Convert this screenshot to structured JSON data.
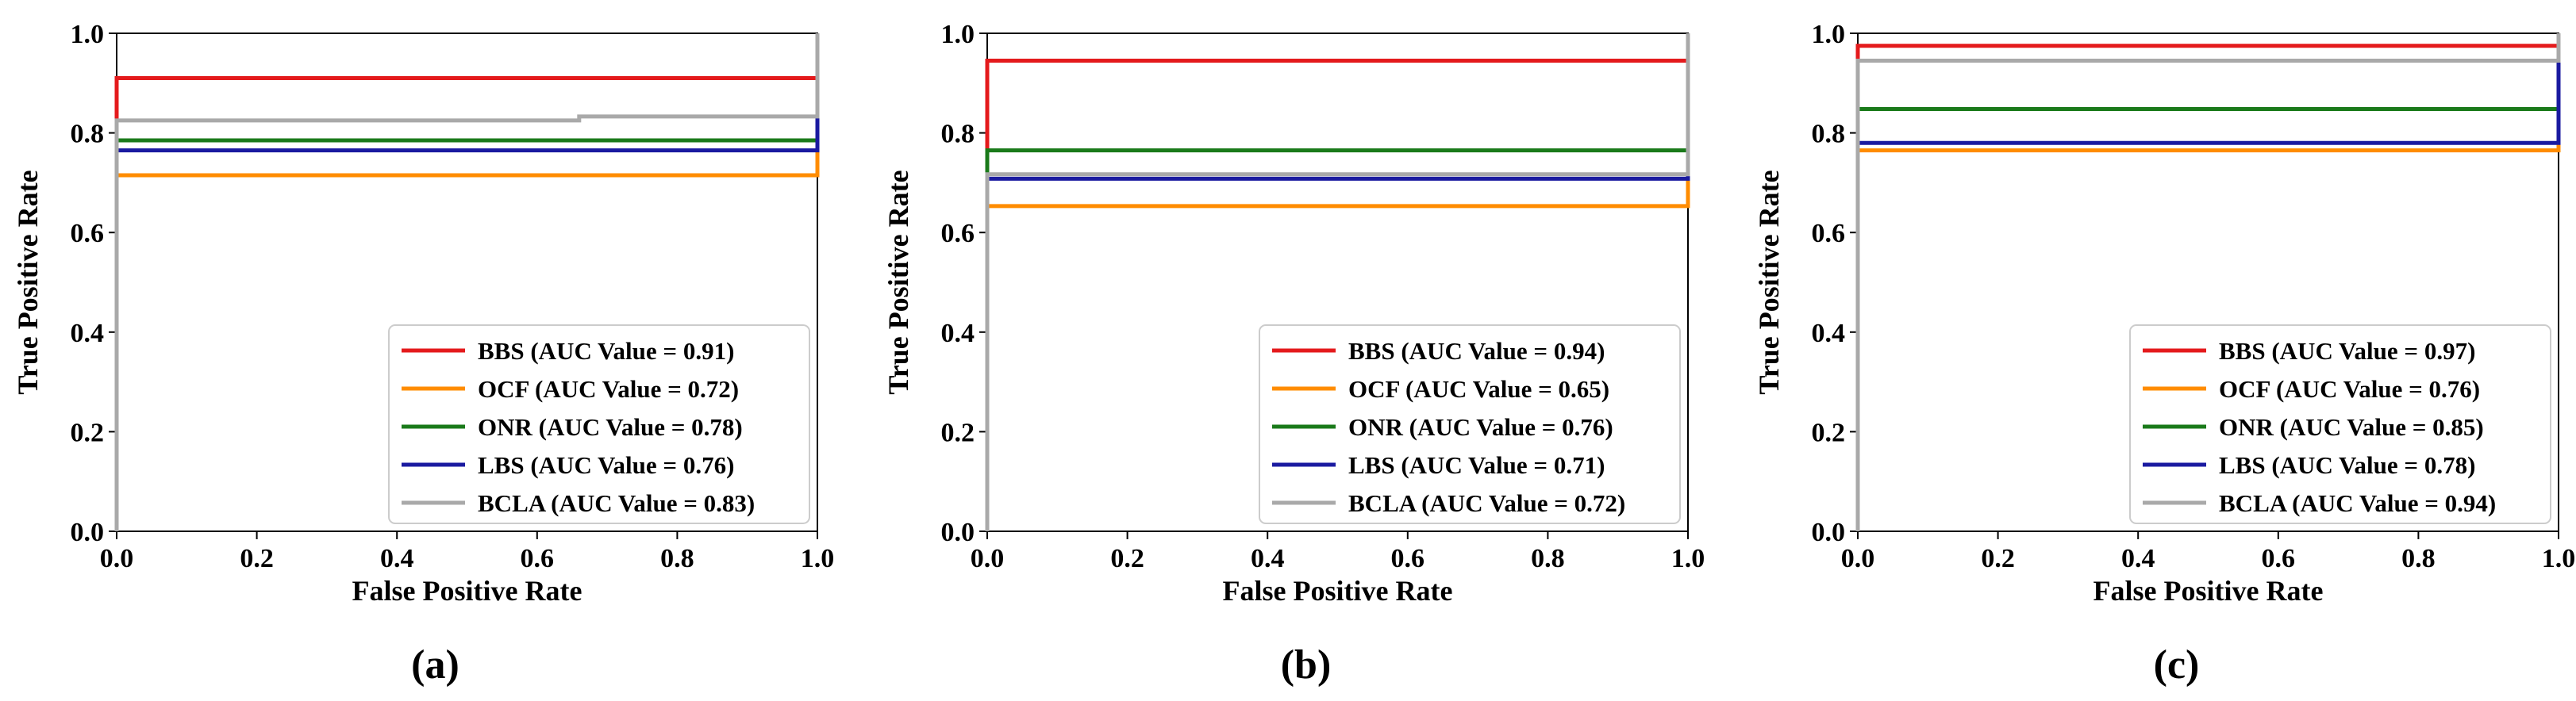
{
  "figure": {
    "x_axis_label": "False Positive Rate",
    "y_axis_label": "True Positive Rate",
    "x_ticks": [
      "0.0",
      "0.2",
      "0.4",
      "0.6",
      "0.8",
      "1.0"
    ],
    "y_ticks": [
      "0.0",
      "0.2",
      "0.4",
      "0.6",
      "0.8",
      "1.0"
    ]
  },
  "chart_data": [
    {
      "type": "line",
      "panel_label": "(a)",
      "xlabel": "False Positive Rate",
      "ylabel": "True Positive Rate",
      "xlim": [
        0,
        1
      ],
      "ylim": [
        0,
        1
      ],
      "legend_position": "lower-right",
      "series": [
        {
          "name": "BBS",
          "legend": "BBS (AUC Value = 0.91)",
          "color": "#e41a1c",
          "x": [
            0,
            0,
            1,
            1
          ],
          "y": [
            0,
            0.91,
            0.91,
            1
          ]
        },
        {
          "name": "OCF",
          "legend": "OCF (AUC Value = 0.72)",
          "color": "#ff8c00",
          "x": [
            0,
            0,
            1,
            1
          ],
          "y": [
            0,
            0.715,
            0.715,
            1
          ]
        },
        {
          "name": "ONR",
          "legend": "ONR (AUC Value = 0.78)",
          "color": "#1a7a1a",
          "x": [
            0,
            0,
            1,
            1
          ],
          "y": [
            0,
            0.785,
            0.785,
            1
          ]
        },
        {
          "name": "LBS",
          "legend": "LBS (AUC Value = 0.76)",
          "color": "#1a1aa0",
          "x": [
            0,
            0,
            1,
            1
          ],
          "y": [
            0,
            0.765,
            0.765,
            1
          ]
        },
        {
          "name": "BCLA",
          "legend": "BCLA (AUC Value = 0.83)",
          "color": "#a9a9a9",
          "x": [
            0,
            0,
            0.66,
            0.66,
            1,
            1
          ],
          "y": [
            0,
            0.825,
            0.825,
            0.833,
            0.833,
            1
          ]
        }
      ]
    },
    {
      "type": "line",
      "panel_label": "(b)",
      "xlabel": "False Positive Rate",
      "ylabel": "True Positive Rate",
      "xlim": [
        0,
        1
      ],
      "ylim": [
        0,
        1
      ],
      "legend_position": "lower-right",
      "series": [
        {
          "name": "BBS",
          "legend": "BBS (AUC Value = 0.94)",
          "color": "#e41a1c",
          "x": [
            0,
            0,
            1,
            1
          ],
          "y": [
            0,
            0.945,
            0.945,
            1
          ]
        },
        {
          "name": "OCF",
          "legend": "OCF (AUC Value = 0.65)",
          "color": "#ff8c00",
          "x": [
            0,
            0,
            1,
            1
          ],
          "y": [
            0,
            0.653,
            0.653,
            1
          ]
        },
        {
          "name": "ONR",
          "legend": "ONR (AUC Value = 0.76)",
          "color": "#1a7a1a",
          "x": [
            0,
            0,
            1,
            1
          ],
          "y": [
            0,
            0.765,
            0.765,
            1
          ]
        },
        {
          "name": "LBS",
          "legend": "LBS (AUC Value = 0.71)",
          "color": "#1a1aa0",
          "x": [
            0,
            0,
            1,
            1
          ],
          "y": [
            0,
            0.708,
            0.708,
            1
          ]
        },
        {
          "name": "BCLA",
          "legend": "BCLA (AUC Value = 0.72)",
          "color": "#a9a9a9",
          "x": [
            0,
            0,
            1,
            1
          ],
          "y": [
            0,
            0.717,
            0.717,
            1
          ]
        }
      ]
    },
    {
      "type": "line",
      "panel_label": "(c)",
      "xlabel": "False Positive Rate",
      "ylabel": "True Positive Rate",
      "xlim": [
        0,
        1
      ],
      "ylim": [
        0,
        1
      ],
      "legend_position": "lower-right",
      "series": [
        {
          "name": "BBS",
          "legend": "BBS (AUC Value = 0.97)",
          "color": "#e41a1c",
          "x": [
            0,
            0,
            1,
            1
          ],
          "y": [
            0,
            0.975,
            0.975,
            1
          ]
        },
        {
          "name": "OCF",
          "legend": "OCF (AUC Value = 0.76)",
          "color": "#ff8c00",
          "x": [
            0,
            0,
            1,
            1
          ],
          "y": [
            0,
            0.765,
            0.765,
            1
          ]
        },
        {
          "name": "ONR",
          "legend": "ONR (AUC Value = 0.85)",
          "color": "#1a7a1a",
          "x": [
            0,
            0,
            1,
            1
          ],
          "y": [
            0,
            0.848,
            0.848,
            1
          ]
        },
        {
          "name": "LBS",
          "legend": "LBS (AUC Value = 0.78)",
          "color": "#1a1aa0",
          "x": [
            0,
            0,
            1,
            1
          ],
          "y": [
            0,
            0.78,
            0.78,
            1
          ]
        },
        {
          "name": "BCLA",
          "legend": "BCLA (AUC Value = 0.94)",
          "color": "#a9a9a9",
          "x": [
            0,
            0,
            1,
            1
          ],
          "y": [
            0,
            0.945,
            0.945,
            1
          ]
        }
      ]
    }
  ]
}
